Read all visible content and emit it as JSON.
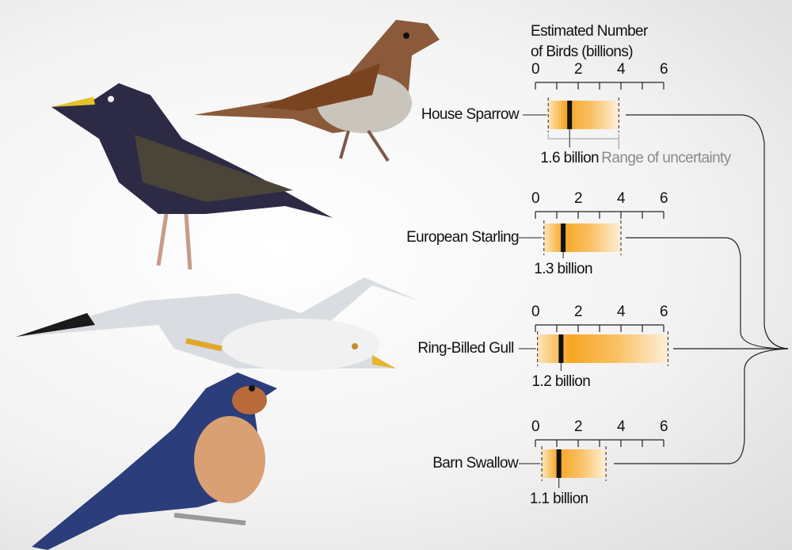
{
  "chart_data": {
    "type": "range",
    "title": [
      "Estimated Number",
      "of Birds (billions)"
    ],
    "annotation": "Range of uncertainty",
    "categories": [
      "House Sparrow",
      "European Starling",
      "Ring-Billed Gull",
      "Barn Swallow"
    ],
    "values": [
      1.6,
      1.3,
      1.2,
      1.1
    ],
    "value_labels": [
      "1.6 billion",
      "1.3 billion",
      "1.2 billion",
      "1.1 billion"
    ],
    "low": [
      0.6,
      0.4,
      0.1,
      0.3
    ],
    "high": [
      3.9,
      4.0,
      6.2,
      3.3
    ],
    "color": "#f6a623",
    "xlim": [
      0,
      6
    ],
    "xticks": [
      0,
      2,
      4,
      6
    ],
    "xminorticks": [
      1,
      3,
      5
    ]
  }
}
